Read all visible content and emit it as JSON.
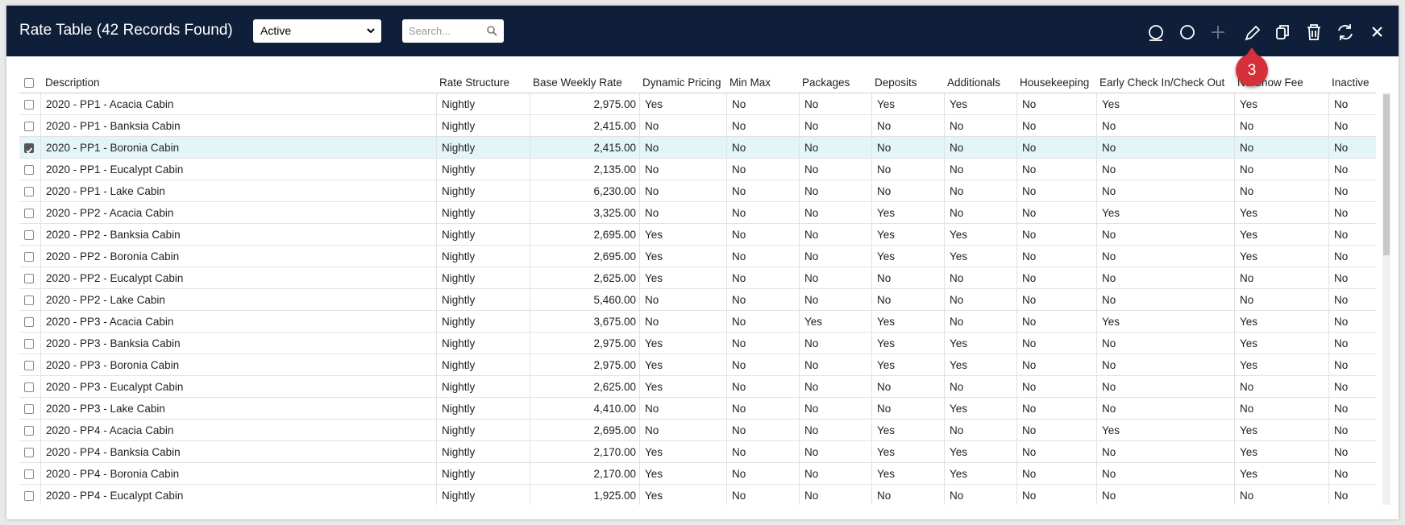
{
  "header": {
    "title": "Rate Table (42 Records Found)",
    "filter": "Active",
    "search_placeholder": "Search...",
    "badge": "3"
  },
  "table": {
    "columns": [
      "Description",
      "Rate Structure",
      "Base Weekly Rate",
      "Dynamic Pricing",
      "Min Max",
      "Packages",
      "Deposits",
      "Additionals",
      "Housekeeping",
      "Early Check In/Check Out",
      "No Show Fee",
      "Inactive"
    ],
    "rows": [
      {
        "checked": false,
        "cells": [
          "2020 - PP1 - Acacia Cabin",
          "Nightly",
          "2,975.00",
          "Yes",
          "No",
          "No",
          "Yes",
          "Yes",
          "No",
          "Yes",
          "Yes",
          "No"
        ]
      },
      {
        "checked": false,
        "cells": [
          "2020 - PP1 - Banksia Cabin",
          "Nightly",
          "2,415.00",
          "No",
          "No",
          "No",
          "No",
          "No",
          "No",
          "No",
          "No",
          "No"
        ]
      },
      {
        "checked": true,
        "cells": [
          "2020 - PP1 - Boronia Cabin",
          "Nightly",
          "2,415.00",
          "No",
          "No",
          "No",
          "No",
          "No",
          "No",
          "No",
          "No",
          "No"
        ]
      },
      {
        "checked": false,
        "cells": [
          "2020 - PP1 - Eucalypt Cabin",
          "Nightly",
          "2,135.00",
          "No",
          "No",
          "No",
          "No",
          "No",
          "No",
          "No",
          "No",
          "No"
        ]
      },
      {
        "checked": false,
        "cells": [
          "2020 - PP1 - Lake Cabin",
          "Nightly",
          "6,230.00",
          "No",
          "No",
          "No",
          "No",
          "No",
          "No",
          "No",
          "No",
          "No"
        ]
      },
      {
        "checked": false,
        "cells": [
          "2020 - PP2 - Acacia Cabin",
          "Nightly",
          "3,325.00",
          "No",
          "No",
          "No",
          "Yes",
          "No",
          "No",
          "Yes",
          "Yes",
          "No"
        ]
      },
      {
        "checked": false,
        "cells": [
          "2020 - PP2 - Banksia Cabin",
          "Nightly",
          "2,695.00",
          "Yes",
          "No",
          "No",
          "Yes",
          "Yes",
          "No",
          "No",
          "Yes",
          "No"
        ]
      },
      {
        "checked": false,
        "cells": [
          "2020 - PP2 - Boronia Cabin",
          "Nightly",
          "2,695.00",
          "Yes",
          "No",
          "No",
          "Yes",
          "Yes",
          "No",
          "No",
          "Yes",
          "No"
        ]
      },
      {
        "checked": false,
        "cells": [
          "2020 - PP2 - Eucalypt Cabin",
          "Nightly",
          "2,625.00",
          "Yes",
          "No",
          "No",
          "No",
          "No",
          "No",
          "No",
          "No",
          "No"
        ]
      },
      {
        "checked": false,
        "cells": [
          "2020 - PP2 - Lake Cabin",
          "Nightly",
          "5,460.00",
          "No",
          "No",
          "No",
          "No",
          "No",
          "No",
          "No",
          "No",
          "No"
        ]
      },
      {
        "checked": false,
        "cells": [
          "2020 - PP3 - Acacia Cabin",
          "Nightly",
          "3,675.00",
          "No",
          "No",
          "Yes",
          "Yes",
          "No",
          "No",
          "Yes",
          "Yes",
          "No"
        ]
      },
      {
        "checked": false,
        "cells": [
          "2020 - PP3 - Banksia Cabin",
          "Nightly",
          "2,975.00",
          "Yes",
          "No",
          "No",
          "Yes",
          "Yes",
          "No",
          "No",
          "Yes",
          "No"
        ]
      },
      {
        "checked": false,
        "cells": [
          "2020 - PP3 - Boronia Cabin",
          "Nightly",
          "2,975.00",
          "Yes",
          "No",
          "No",
          "Yes",
          "Yes",
          "No",
          "No",
          "Yes",
          "No"
        ]
      },
      {
        "checked": false,
        "cells": [
          "2020 - PP3 - Eucalypt Cabin",
          "Nightly",
          "2,625.00",
          "Yes",
          "No",
          "No",
          "No",
          "No",
          "No",
          "No",
          "No",
          "No"
        ]
      },
      {
        "checked": false,
        "cells": [
          "2020 - PP3 - Lake Cabin",
          "Nightly",
          "4,410.00",
          "No",
          "No",
          "No",
          "No",
          "Yes",
          "No",
          "No",
          "No",
          "No"
        ]
      },
      {
        "checked": false,
        "cells": [
          "2020 - PP4 - Acacia Cabin",
          "Nightly",
          "2,695.00",
          "No",
          "No",
          "No",
          "Yes",
          "No",
          "No",
          "Yes",
          "Yes",
          "No"
        ]
      },
      {
        "checked": false,
        "cells": [
          "2020 - PP4 - Banksia Cabin",
          "Nightly",
          "2,170.00",
          "Yes",
          "No",
          "No",
          "Yes",
          "Yes",
          "No",
          "No",
          "Yes",
          "No"
        ]
      },
      {
        "checked": false,
        "cells": [
          "2020 - PP4 - Boronia Cabin",
          "Nightly",
          "2,170.00",
          "Yes",
          "No",
          "No",
          "Yes",
          "Yes",
          "No",
          "No",
          "Yes",
          "No"
        ]
      },
      {
        "checked": false,
        "cells": [
          "2020 - PP4 - Eucalypt Cabin",
          "Nightly",
          "1,925.00",
          "Yes",
          "No",
          "No",
          "No",
          "No",
          "No",
          "No",
          "No",
          "No"
        ]
      }
    ]
  }
}
